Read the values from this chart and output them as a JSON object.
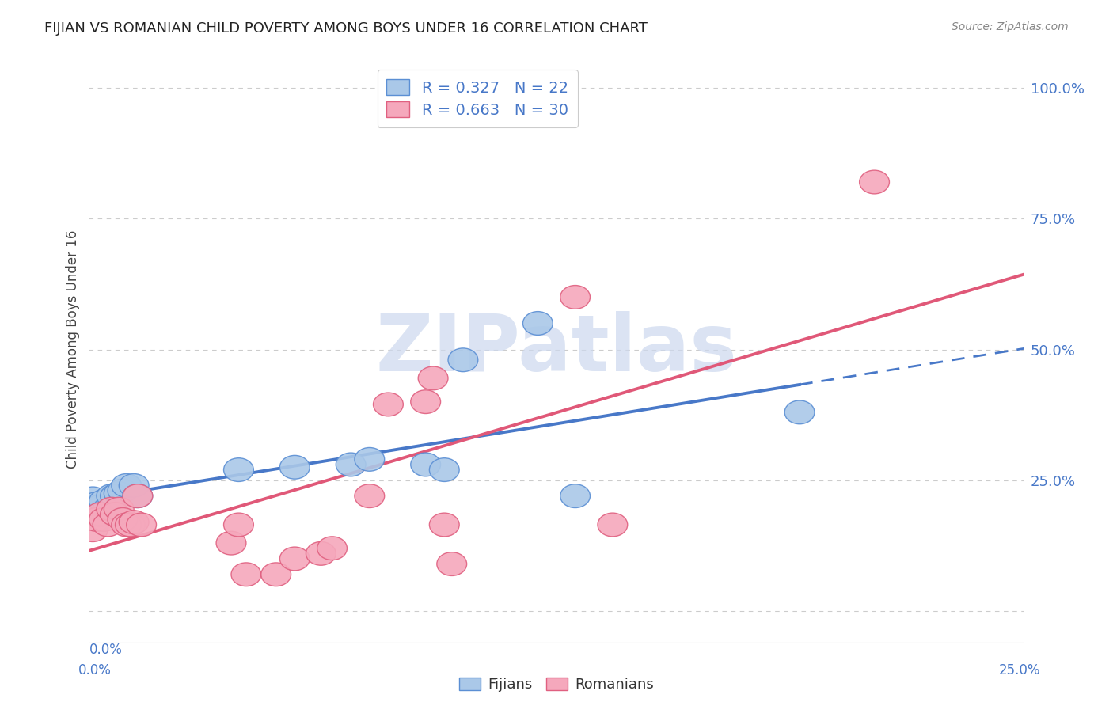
{
  "title": "FIJIAN VS ROMANIAN CHILD POVERTY AMONG BOYS UNDER 16 CORRELATION CHART",
  "source": "Source: ZipAtlas.com",
  "ylabel": "Child Poverty Among Boys Under 16",
  "xlim": [
    0.0,
    0.25
  ],
  "ylim": [
    -0.06,
    1.06
  ],
  "ytick_vals": [
    0.0,
    0.25,
    0.5,
    0.75,
    1.0
  ],
  "ytick_labels": [
    "",
    "25.0%",
    "50.0%",
    "75.0%",
    "100.0%"
  ],
  "fijian_x": [
    0.001,
    0.002,
    0.003,
    0.004,
    0.005,
    0.006,
    0.007,
    0.008,
    0.009,
    0.01,
    0.012,
    0.013,
    0.04,
    0.055,
    0.07,
    0.075,
    0.09,
    0.095,
    0.1,
    0.12,
    0.13,
    0.19
  ],
  "fijian_y": [
    0.215,
    0.205,
    0.2,
    0.21,
    0.195,
    0.22,
    0.22,
    0.225,
    0.23,
    0.24,
    0.24,
    0.22,
    0.27,
    0.275,
    0.28,
    0.29,
    0.28,
    0.27,
    0.48,
    0.55,
    0.22,
    0.38
  ],
  "romanian_x": [
    0.001,
    0.002,
    0.003,
    0.004,
    0.005,
    0.006,
    0.007,
    0.008,
    0.009,
    0.01,
    0.011,
    0.012,
    0.013,
    0.014,
    0.038,
    0.04,
    0.042,
    0.05,
    0.055,
    0.062,
    0.065,
    0.075,
    0.08,
    0.09,
    0.092,
    0.095,
    0.097,
    0.13,
    0.14,
    0.21
  ],
  "romanian_y": [
    0.155,
    0.175,
    0.185,
    0.175,
    0.165,
    0.195,
    0.185,
    0.195,
    0.175,
    0.165,
    0.165,
    0.17,
    0.22,
    0.165,
    0.13,
    0.165,
    0.07,
    0.07,
    0.1,
    0.11,
    0.12,
    0.22,
    0.395,
    0.4,
    0.445,
    0.165,
    0.09,
    0.6,
    0.165,
    0.82
  ],
  "fijian_color": "#aac8e8",
  "romanian_color": "#f5a8bc",
  "fijian_edge_color": "#5b8fd4",
  "romanian_edge_color": "#e06080",
  "fijian_line_color": "#4878c8",
  "romanian_line_color": "#e05878",
  "fijian_R": 0.327,
  "fijian_N": 22,
  "romanian_R": 0.663,
  "romanian_N": 30,
  "watermark_text": "ZIPatlas",
  "watermark_color": "#ccd8ee",
  "background_color": "#ffffff",
  "grid_color": "#cccccc",
  "title_color": "#222222",
  "source_color": "#888888",
  "axis_label_color": "#444444",
  "tick_label_color": "#4878c8",
  "legend_text_color": "#4878c8",
  "bottom_legend_color": "#333333"
}
